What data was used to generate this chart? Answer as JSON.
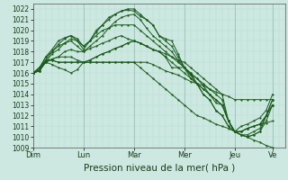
{
  "bg_color": "#cce8e0",
  "line_color": "#1a5c1a",
  "grid_color_major": "#9fc8c0",
  "grid_color_minor": "#b8dcd4",
  "ylim": [
    1009,
    1022.5
  ],
  "yticks": [
    1009,
    1010,
    1011,
    1012,
    1013,
    1014,
    1015,
    1016,
    1017,
    1018,
    1019,
    1020,
    1021,
    1022
  ],
  "xlabel": "Pression niveau de la mer( hPa )",
  "xlabel_fontsize": 7.5,
  "day_labels": [
    "Dim",
    "Lun",
    "Mar",
    "Mer",
    "Jeu",
    "Ve"
  ],
  "day_positions": [
    0,
    24,
    48,
    72,
    96,
    114
  ],
  "total_hours": 120,
  "lines": [
    [
      0,
      1016,
      3,
      1016.3,
      6,
      1017,
      9,
      1017.3,
      12,
      1017.5,
      15,
      1018,
      18,
      1018.2,
      21,
      1018,
      24,
      1018,
      27,
      1018.5,
      30,
      1019,
      33,
      1019.5,
      36,
      1020.2,
      39,
      1020.8,
      42,
      1021.2,
      45,
      1021.4,
      48,
      1021.5,
      51,
      1021,
      54,
      1020.2,
      57,
      1019.5,
      60,
      1019,
      63,
      1018.5,
      66,
      1018,
      69,
      1017.2,
      72,
      1016.5,
      75,
      1015.8,
      78,
      1015,
      81,
      1014.5,
      84,
      1014,
      87,
      1013.5,
      90,
      1013,
      93,
      1011.5,
      96,
      1010.5,
      99,
      1010.2,
      102,
      1010,
      105,
      1009.7,
      108,
      1009.5,
      111,
      1009.2,
      114,
      1009
    ],
    [
      0,
      1016,
      3,
      1016.5,
      6,
      1017,
      9,
      1017.8,
      12,
      1018.2,
      15,
      1018.8,
      18,
      1019.2,
      21,
      1019,
      24,
      1018.5,
      27,
      1019,
      30,
      1019.8,
      33,
      1020.5,
      36,
      1021.2,
      39,
      1021.5,
      42,
      1021.8,
      45,
      1022,
      48,
      1022,
      51,
      1021.5,
      54,
      1021,
      57,
      1020.5,
      60,
      1019.5,
      63,
      1019,
      66,
      1018.5,
      69,
      1017.5,
      72,
      1016.5,
      75,
      1015.5,
      78,
      1015,
      81,
      1014,
      84,
      1013.5,
      87,
      1012.5,
      90,
      1012,
      93,
      1011,
      96,
      1010.5,
      99,
      1010.2,
      102,
      1010.2,
      105,
      1010.5,
      108,
      1010.8,
      111,
      1012,
      114,
      1013.5
    ],
    [
      0,
      1016,
      3,
      1016.5,
      6,
      1017.2,
      9,
      1018,
      12,
      1018.7,
      15,
      1019.2,
      18,
      1019.5,
      21,
      1019,
      24,
      1018.2,
      27,
      1019,
      30,
      1020,
      33,
      1020.5,
      36,
      1021,
      39,
      1021.5,
      42,
      1021.8,
      45,
      1021.9,
      48,
      1021.8,
      51,
      1021.3,
      54,
      1021,
      57,
      1020.5,
      60,
      1019.5,
      63,
      1019.2,
      66,
      1019,
      69,
      1017.8,
      72,
      1016.5,
      75,
      1015.8,
      78,
      1015.5,
      81,
      1014.8,
      84,
      1014,
      87,
      1013.2,
      90,
      1013,
      93,
      1011.5,
      96,
      1010.5,
      99,
      1010.5,
      102,
      1010.8,
      105,
      1011,
      108,
      1011.2,
      111,
      1011.3,
      114,
      1011.5
    ],
    [
      0,
      1016,
      3,
      1016.2,
      6,
      1017.2,
      9,
      1017.2,
      12,
      1017,
      15,
      1017,
      18,
      1017,
      21,
      1017,
      24,
      1017,
      27,
      1017,
      30,
      1017,
      33,
      1017,
      36,
      1017,
      39,
      1017,
      42,
      1017,
      45,
      1017,
      48,
      1017,
      51,
      1017,
      54,
      1017,
      57,
      1016.8,
      60,
      1016.5,
      63,
      1016.2,
      66,
      1016,
      69,
      1015.8,
      72,
      1015.5,
      75,
      1015.2,
      78,
      1015,
      81,
      1014.8,
      84,
      1014.5,
      87,
      1014.2,
      90,
      1014,
      93,
      1013.8,
      96,
      1013.5,
      99,
      1013.5,
      102,
      1013.5,
      105,
      1013.5,
      108,
      1013.5,
      111,
      1013.5,
      114,
      1013.5
    ],
    [
      0,
      1016,
      3,
      1016.2,
      6,
      1017.2,
      9,
      1017.2,
      12,
      1017,
      15,
      1017,
      18,
      1017,
      21,
      1017,
      24,
      1017,
      27,
      1017,
      30,
      1017,
      33,
      1017,
      36,
      1017,
      39,
      1017,
      42,
      1017,
      45,
      1017,
      48,
      1017,
      51,
      1016.5,
      54,
      1016,
      57,
      1015.5,
      60,
      1015,
      63,
      1014.5,
      66,
      1014,
      69,
      1013.5,
      72,
      1013,
      75,
      1012.5,
      78,
      1012,
      81,
      1011.8,
      84,
      1011.5,
      87,
      1011.2,
      90,
      1011,
      93,
      1010.8,
      96,
      1010.5,
      99,
      1011,
      102,
      1011.2,
      105,
      1011.5,
      108,
      1011.8,
      111,
      1012.5,
      114,
      1014
    ],
    [
      0,
      1016,
      3,
      1016.3,
      6,
      1017.5,
      9,
      1018,
      12,
      1018.5,
      15,
      1018.8,
      18,
      1019,
      21,
      1018.5,
      24,
      1018,
      27,
      1018.3,
      30,
      1018.5,
      33,
      1018.8,
      36,
      1019,
      39,
      1019.3,
      42,
      1019.5,
      45,
      1019.2,
      48,
      1019,
      51,
      1018.8,
      54,
      1018.5,
      57,
      1018.2,
      60,
      1018,
      63,
      1017.5,
      66,
      1017,
      69,
      1016.5,
      72,
      1016,
      75,
      1015.5,
      78,
      1015,
      81,
      1014.5,
      84,
      1014,
      87,
      1013.5,
      90,
      1013,
      93,
      1011.5,
      96,
      1010.5,
      99,
      1010.5,
      102,
      1010.8,
      105,
      1011,
      108,
      1011.2,
      111,
      1012,
      114,
      1013
    ],
    [
      0,
      1016,
      3,
      1016.2,
      6,
      1017,
      9,
      1016.8,
      12,
      1016.5,
      15,
      1016.3,
      18,
      1016,
      21,
      1016.3,
      24,
      1017,
      27,
      1017.2,
      30,
      1017.5,
      33,
      1017.8,
      36,
      1018,
      39,
      1018.3,
      42,
      1018.5,
      45,
      1018.8,
      48,
      1019,
      51,
      1018.8,
      54,
      1018.5,
      57,
      1018.2,
      60,
      1018,
      63,
      1017.8,
      66,
      1017.5,
      69,
      1017.2,
      72,
      1017,
      75,
      1016.5,
      78,
      1016,
      81,
      1015.5,
      84,
      1015,
      87,
      1014.5,
      90,
      1014,
      93,
      1011.5,
      96,
      1010.5,
      99,
      1010.2,
      102,
      1010,
      105,
      1010.2,
      108,
      1010.5,
      111,
      1012,
      114,
      1013.5
    ],
    [
      0,
      1016,
      3,
      1016.2,
      6,
      1017,
      9,
      1017.3,
      12,
      1017.5,
      15,
      1017.5,
      18,
      1017.5,
      21,
      1017.2,
      24,
      1017,
      27,
      1017.2,
      30,
      1017.5,
      33,
      1017.8,
      36,
      1018,
      39,
      1018.3,
      42,
      1018.5,
      45,
      1018.8,
      48,
      1019,
      51,
      1018.8,
      54,
      1018.5,
      57,
      1018.2,
      60,
      1018,
      63,
      1017.5,
      66,
      1016.5,
      69,
      1016.5,
      72,
      1016.5,
      75,
      1016,
      78,
      1015.5,
      81,
      1015,
      84,
      1014.5,
      87,
      1014,
      90,
      1013.5,
      93,
      1011.5,
      96,
      1010.5,
      99,
      1010.5,
      102,
      1010.8,
      105,
      1011,
      108,
      1011.2,
      111,
      1012,
      114,
      1013
    ],
    [
      0,
      1016,
      3,
      1016.5,
      6,
      1017.5,
      9,
      1018.2,
      12,
      1019,
      15,
      1019.3,
      18,
      1019.5,
      21,
      1019.2,
      24,
      1018.5,
      27,
      1019,
      30,
      1019.5,
      33,
      1020,
      36,
      1020.2,
      39,
      1020.5,
      42,
      1020.5,
      45,
      1020.5,
      48,
      1020.5,
      51,
      1020,
      54,
      1019.5,
      57,
      1019,
      60,
      1018.5,
      63,
      1018,
      66,
      1017.5,
      69,
      1017,
      72,
      1016.5,
      75,
      1016,
      78,
      1015,
      81,
      1014,
      84,
      1013.5,
      87,
      1012.5,
      90,
      1012,
      93,
      1011,
      96,
      1010.5,
      99,
      1010.2,
      102,
      1010,
      105,
      1010.2,
      108,
      1010.5,
      111,
      1011.5,
      114,
      1013
    ]
  ]
}
